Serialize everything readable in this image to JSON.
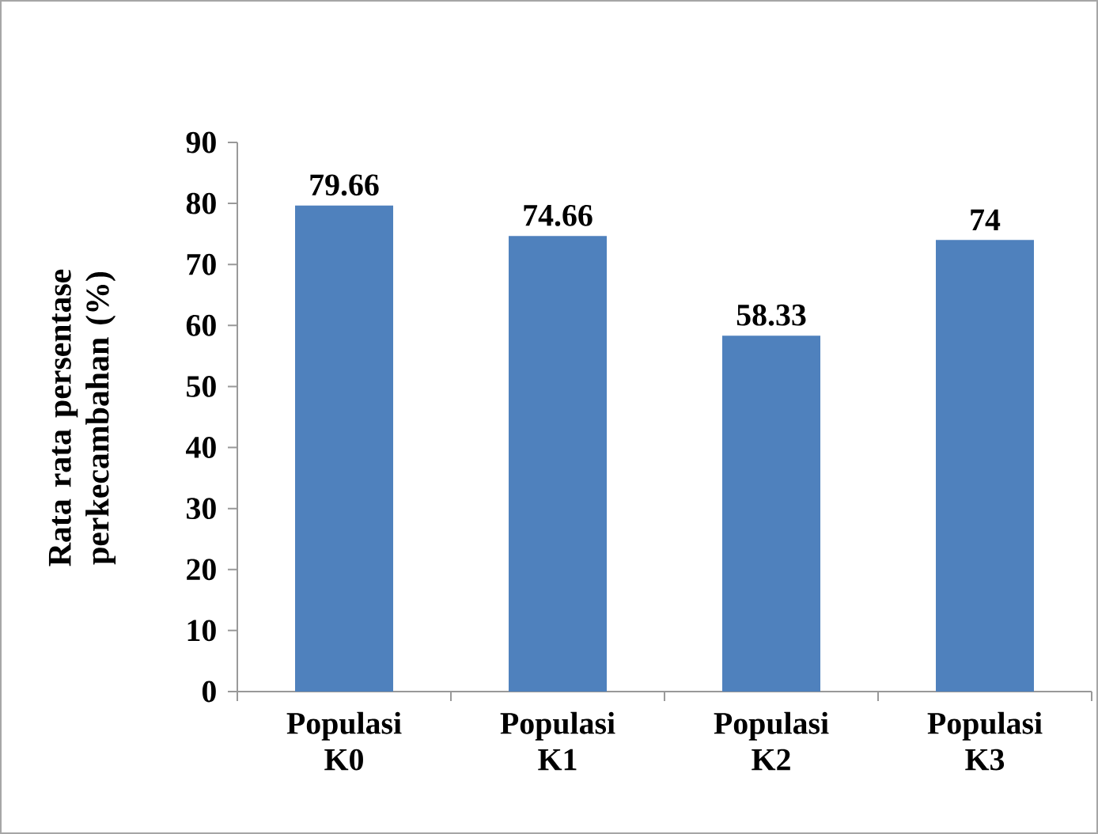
{
  "chart_data": {
    "type": "bar",
    "ylabel": "Rata rata persentase perkecambahan (%)",
    "categories": [
      "Populasi K0",
      "Populasi K1",
      "Populasi K2",
      "Populasi K3"
    ],
    "values": [
      79.66,
      74.66,
      58.33,
      74
    ],
    "color": "#4f81bd",
    "data_labels": true,
    "grid": false,
    "ylim": [
      0,
      90
    ],
    "yticks": [
      0,
      10,
      20,
      30,
      40,
      50,
      60,
      70,
      80,
      90
    ]
  }
}
